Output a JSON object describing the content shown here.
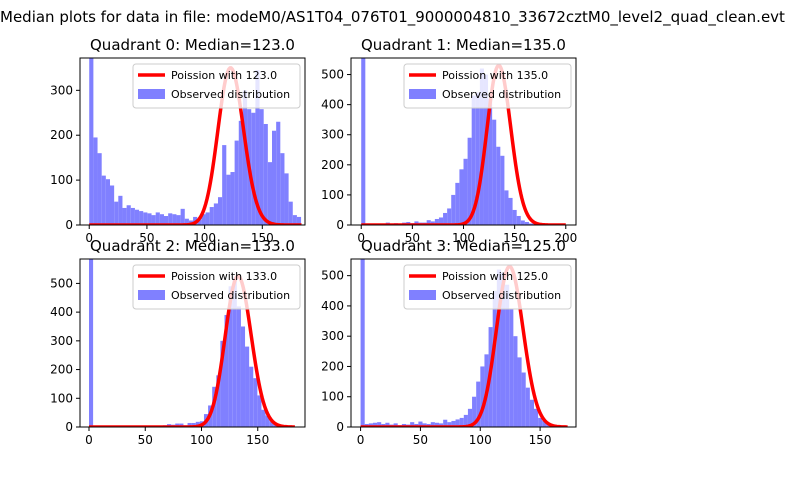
{
  "suptitle": "Median plots for data in file: modeM0/AS1T04_076T01_9000004810_33672cztM0_level2_quad_clean.evt",
  "colors": {
    "hist": "#8080ff",
    "curve": "#ff0000",
    "frame": "#000000"
  },
  "chart_data": [
    {
      "type": "bar",
      "title": "Quadrant 0: Median=123.0",
      "xlim": [
        -8,
        187
      ],
      "ylim": [
        0,
        372
      ],
      "xticks": [
        0,
        50,
        100,
        150
      ],
      "yticks": [
        0,
        100,
        200,
        300
      ],
      "hist": {
        "start": 0,
        "width": 3.6,
        "values": [
          372,
          195,
          160,
          110,
          102,
          88,
          52,
          65,
          38,
          44,
          38,
          34,
          31,
          28,
          26,
          22,
          28,
          24,
          20,
          26,
          24,
          22,
          36,
          14,
          10,
          18,
          12,
          24,
          28,
          40,
          48,
          62,
          178,
          112,
          118,
          188,
          232,
          300,
          258,
          250,
          345,
          258,
          225,
          140,
          210,
          230,
          160,
          115,
          52,
          22,
          18
        ]
      },
      "poisson": {
        "mean": 123.0,
        "peak": 350
      },
      "legend": {
        "curve_label": "Poission with 123.0",
        "hist_label": "Observed distribution"
      }
    },
    {
      "type": "bar",
      "title": "Quadrant 1: Median=135.0",
      "xlim": [
        -10,
        210
      ],
      "ylim": [
        0,
        555
      ],
      "xticks": [
        0,
        50,
        100,
        150,
        200
      ],
      "yticks": [
        0,
        100,
        200,
        300,
        400,
        500
      ],
      "hist": {
        "start": 0,
        "width": 4.0,
        "values": [
          555,
          2,
          2,
          3,
          4,
          3,
          8,
          5,
          6,
          4,
          8,
          10,
          6,
          12,
          8,
          8,
          16,
          12,
          20,
          25,
          40,
          55,
          100,
          140,
          185,
          220,
          290,
          430,
          440,
          520,
          500,
          420,
          350,
          260,
          230,
          115,
          90,
          50,
          30,
          15,
          10,
          5,
          4,
          3,
          2,
          2,
          2,
          2,
          2,
          2
        ]
      },
      "poisson": {
        "mean": 135.0,
        "peak": 530
      },
      "legend": {
        "curve_label": "Poission with 135.0",
        "hist_label": "Observed distribution"
      }
    },
    {
      "type": "bar",
      "title": "Quadrant 2: Median=133.0",
      "xlim": [
        -8,
        192
      ],
      "ylim": [
        0,
        585
      ],
      "xticks": [
        0,
        50,
        100,
        150
      ],
      "yticks": [
        0,
        100,
        200,
        300,
        400,
        500
      ],
      "hist": {
        "start": 0,
        "width": 3.65,
        "values": [
          585,
          2,
          1,
          1,
          2,
          1,
          2,
          2,
          1,
          2,
          2,
          2,
          3,
          2,
          3,
          2,
          4,
          3,
          6,
          10,
          8,
          12,
          12,
          6,
          14,
          14,
          18,
          20,
          45,
          75,
          140,
          180,
          300,
          390,
          490,
          520,
          420,
          350,
          280,
          210,
          170,
          110,
          60,
          40,
          20,
          12,
          6,
          4,
          2,
          2
        ]
      },
      "poisson": {
        "mean": 133.0,
        "peak": 525
      },
      "legend": {
        "curve_label": "Poission with 133.0",
        "hist_label": "Observed distribution"
      }
    },
    {
      "type": "bar",
      "title": "Quadrant 3: Median=125.0",
      "xlim": [
        -8,
        180
      ],
      "ylim": [
        0,
        555
      ],
      "xticks": [
        0,
        50,
        100,
        150
      ],
      "yticks": [
        0,
        100,
        200,
        300,
        400,
        500
      ],
      "hist": {
        "start": 0,
        "width": 3.45,
        "values": [
          555,
          10,
          12,
          14,
          16,
          10,
          14,
          8,
          12,
          6,
          10,
          8,
          16,
          10,
          18,
          12,
          10,
          16,
          14,
          12,
          24,
          16,
          20,
          25,
          30,
          40,
          60,
          100,
          150,
          200,
          240,
          330,
          450,
          520,
          510,
          470,
          390,
          300,
          230,
          180,
          130,
          90,
          60,
          30,
          20,
          10,
          6,
          4,
          2,
          2
        ]
      },
      "poisson": {
        "mean": 125.0,
        "peak": 530
      },
      "legend": {
        "curve_label": "Poission with 125.0",
        "hist_label": "Observed distribution"
      }
    }
  ]
}
